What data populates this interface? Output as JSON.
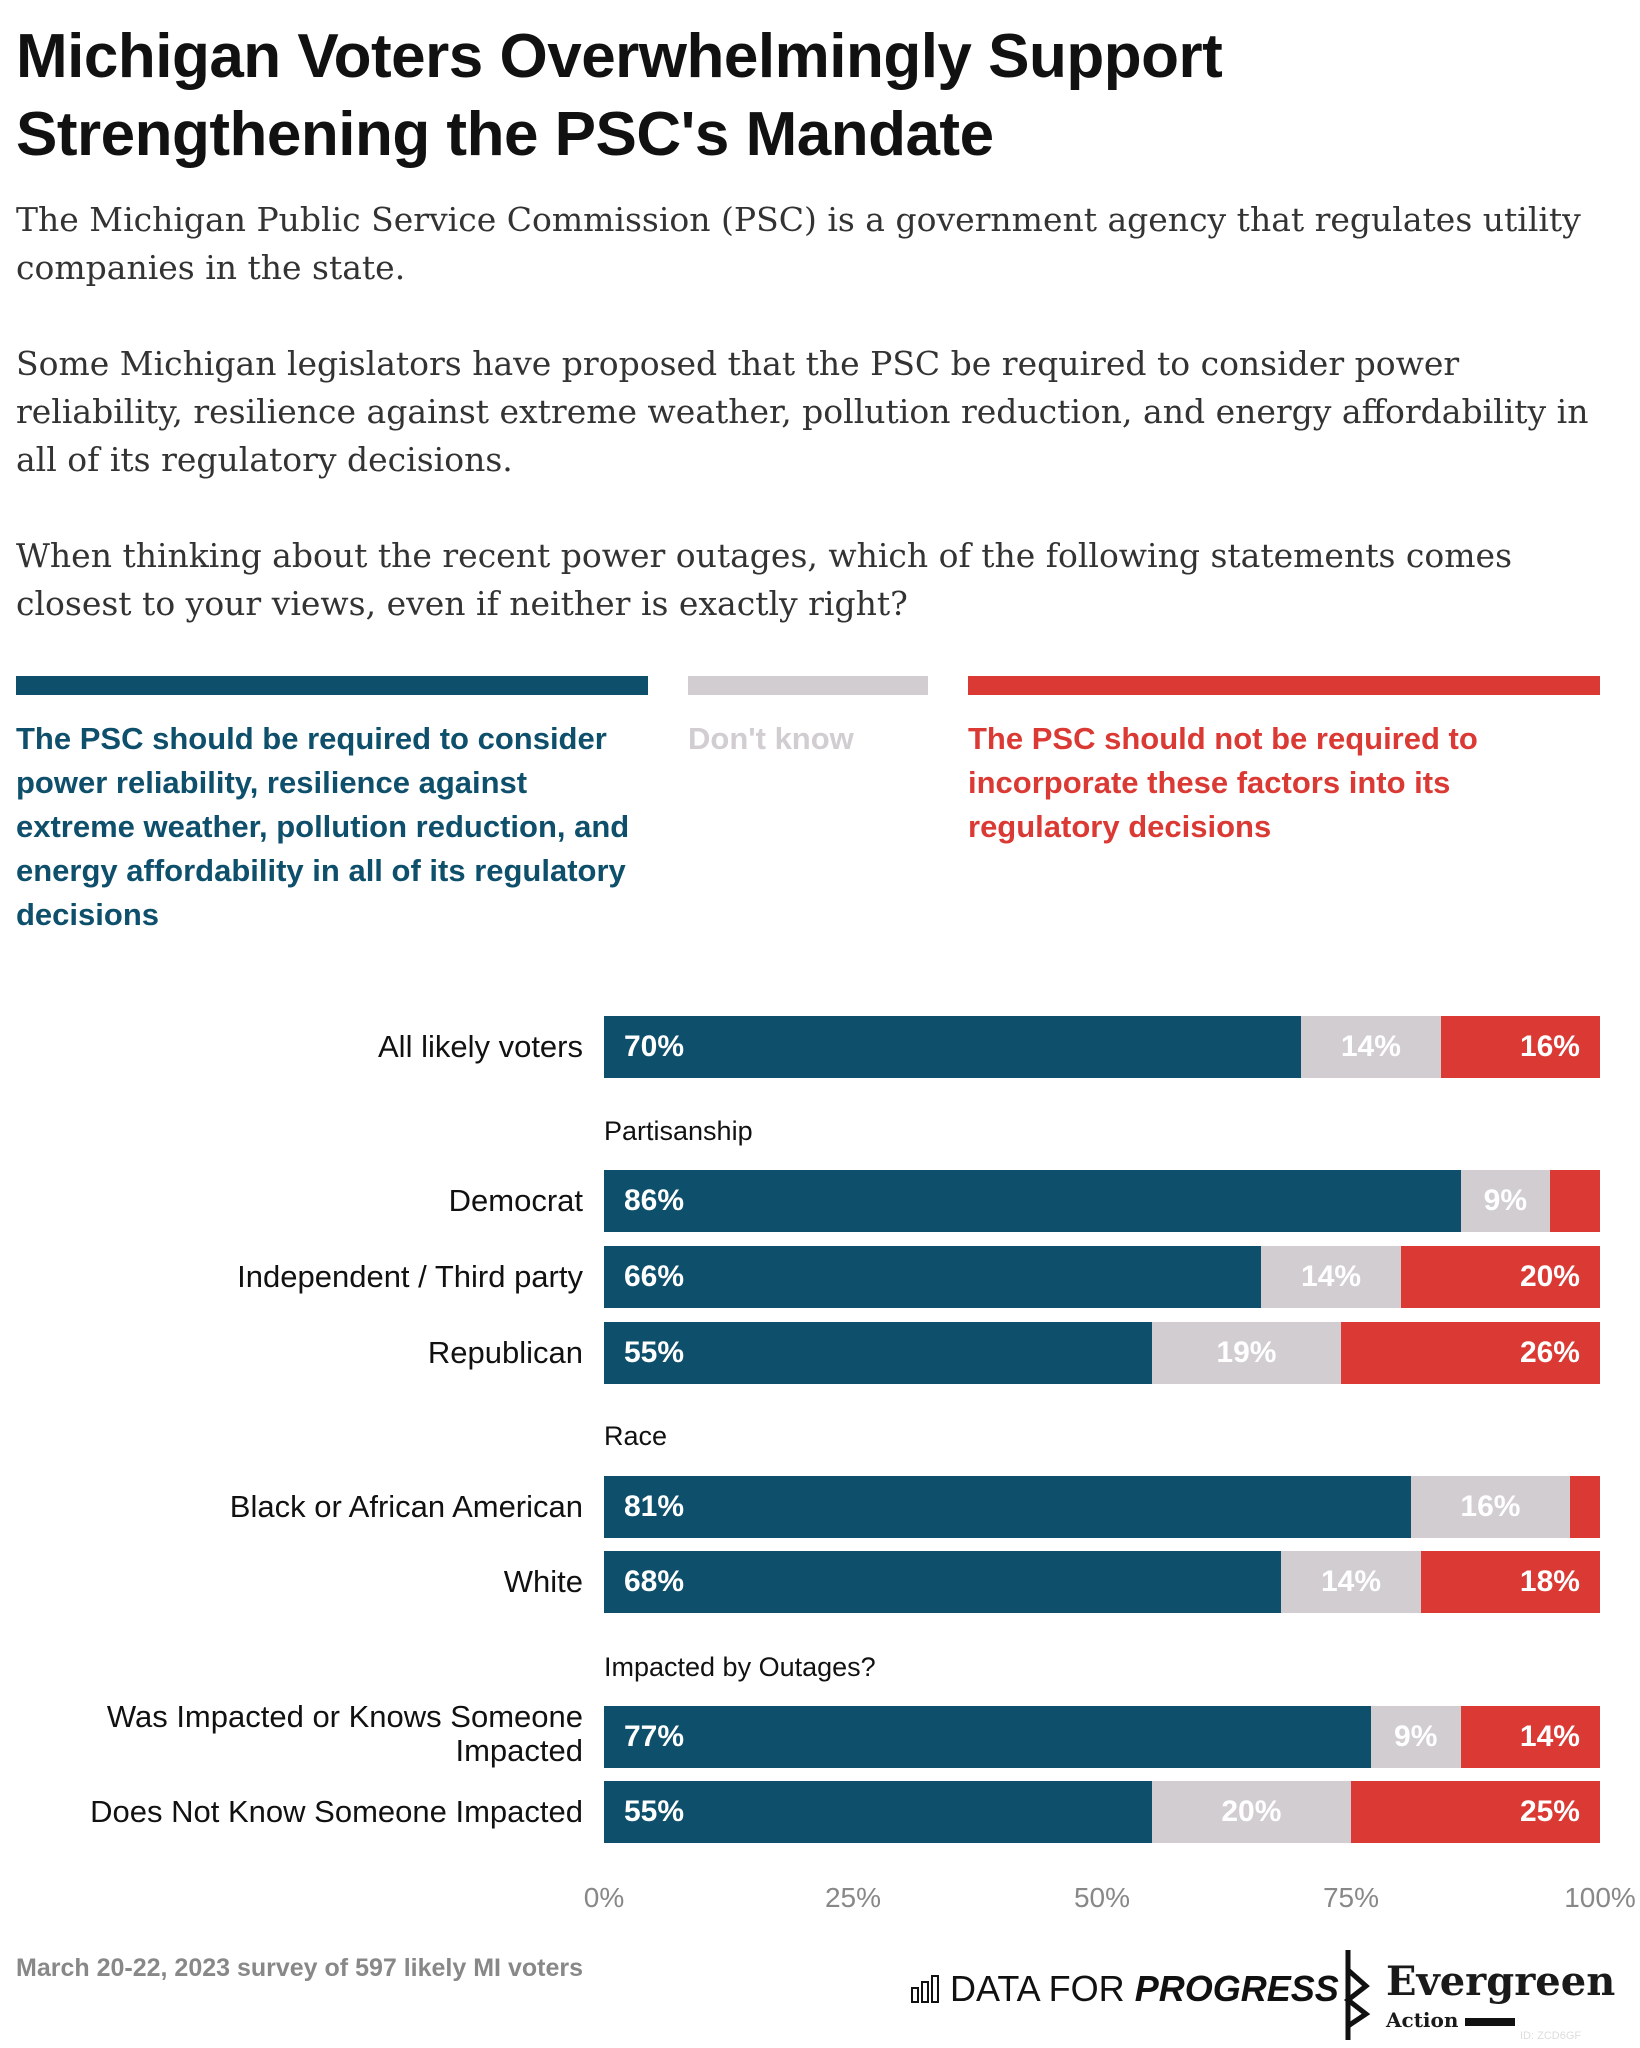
{
  "title": "Michigan Voters Overwhelmingly Support Strengthening the PSC's Mandate",
  "intro": [
    "The Michigan Public Service Commission (PSC) is a government agency that regulates utility companies in the state.",
    "Some Michigan legislators have proposed that the PSC be required to consider power reliability, resilience against extreme weather, pollution reduction, and energy affordability in all of its regulatory decisions.",
    "When thinking about the recent power outages, which of the following statements comes closest to your views, even if neither is exactly right?"
  ],
  "colors": {
    "support": "#0e4f6c",
    "dont_know": "#d1cdd1",
    "oppose": "#db3a34"
  },
  "chart_data": {
    "type": "bar",
    "orientation": "horizontal",
    "stacked": true,
    "series": [
      {
        "name": "The PSC should be required to consider power reliability, resilience against extreme weather, pollution reduction, and energy affordability in all of its regulatory decisions",
        "values": [
          70,
          86,
          66,
          55,
          81,
          68,
          77,
          55
        ]
      },
      {
        "name": "Don't know",
        "values": [
          14,
          9,
          14,
          19,
          16,
          14,
          9,
          20
        ]
      },
      {
        "name": "The PSC should not be required to incorporate these factors into its regulatory decisions",
        "values": [
          16,
          5,
          20,
          26,
          3,
          18,
          14,
          25
        ]
      }
    ],
    "categories": [
      "All likely voters",
      "Democrat",
      "Independent / Third party",
      "Republican",
      "Black or African American",
      "White",
      "Was Impacted or Knows Someone Impacted",
      "Does Not Know Someone Impacted"
    ],
    "groups": [
      {
        "label": "",
        "rows": [
          0
        ]
      },
      {
        "label": "Partisanship",
        "rows": [
          1,
          2,
          3
        ]
      },
      {
        "label": "Race",
        "rows": [
          4,
          5
        ]
      },
      {
        "label": "Impacted by Outages?",
        "rows": [
          6,
          7
        ]
      }
    ],
    "labels_shown": [
      [
        "70%",
        "14%",
        "16%"
      ],
      [
        "86%",
        "9%",
        ""
      ],
      [
        "66%",
        "14%",
        "20%"
      ],
      [
        "55%",
        "19%",
        "26%"
      ],
      [
        "81%",
        "16%",
        ""
      ],
      [
        "68%",
        "14%",
        "18%"
      ],
      [
        "77%",
        "9%",
        "14%"
      ],
      [
        "55%",
        "20%",
        "25%"
      ]
    ],
    "xticks": [
      "0%",
      "25%",
      "50%",
      "75%",
      "100%"
    ],
    "xlim": [
      0,
      100
    ],
    "legend": "top"
  },
  "footer": {
    "note": "March 20-22, 2023 survey of 597 likely MI voters",
    "dfp_light": "DATA FOR ",
    "dfp_bold": "PROGRESS",
    "eg_name": "Evergreen",
    "eg_sub": "Action",
    "id": "ID: ZCD6GF"
  }
}
